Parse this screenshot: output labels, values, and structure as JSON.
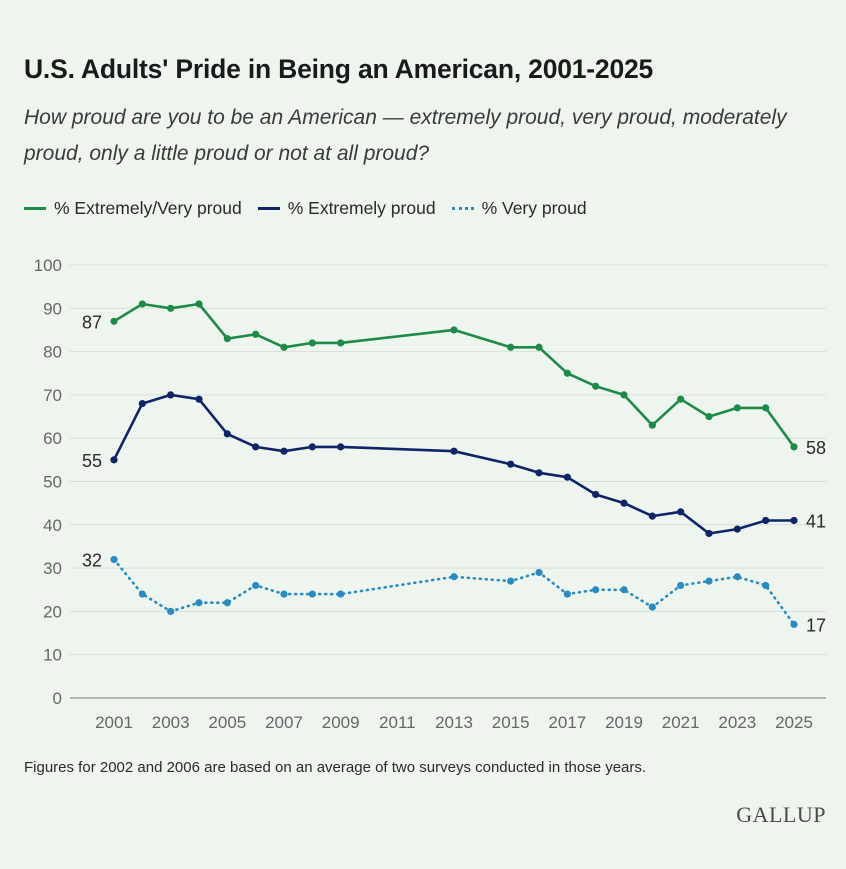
{
  "header": {
    "title": "U.S. Adults' Pride in Being an American, 2001-2025",
    "subtitle": "How proud are you to be an American — extremely proud, very proud, moderately proud, only a little proud or not at all proud?"
  },
  "footer": {
    "note": "Figures for 2002 and 2006 are based on an average of two surveys conducted in those years.",
    "brand": "GALLUP"
  },
  "colors": {
    "extremely_very": "#1e8a47",
    "extremely": "#0e2466",
    "very": "#2a8bc2",
    "grid": "#d5dfd7",
    "axis_text": "#666666",
    "label_text": "#2a2a2a"
  },
  "chart_data": {
    "type": "line",
    "title": "U.S. Adults' Pride in Being an American, 2001-2025",
    "subtitle": "How proud are you to be an American — extremely proud, very proud, moderately proud, only a little proud or not at all proud?",
    "xlabel": "",
    "ylabel": "",
    "ylim": [
      0,
      100
    ],
    "y_ticks": [
      0,
      10,
      20,
      30,
      40,
      50,
      60,
      70,
      80,
      90,
      100
    ],
    "x_ticks": [
      2001,
      2003,
      2005,
      2007,
      2009,
      2011,
      2013,
      2015,
      2017,
      2019,
      2021,
      2023,
      2025
    ],
    "xlim": [
      2001,
      2025
    ],
    "grid": true,
    "legend": "top-left",
    "series": [
      {
        "name": "% Extremely/Very proud",
        "key": "extremely_very",
        "line_style": "solid",
        "x": [
          2001,
          2002,
          2003,
          2004,
          2005,
          2006,
          2007,
          2008,
          2009,
          2013,
          2015,
          2016,
          2017,
          2018,
          2019,
          2020,
          2021,
          2022,
          2023,
          2024,
          2025
        ],
        "values": [
          87,
          91,
          90,
          91,
          83,
          84,
          81,
          82,
          82,
          85,
          81,
          81,
          75,
          72,
          70,
          63,
          69,
          65,
          67,
          67,
          58
        ],
        "labels": [
          {
            "x": 2001,
            "text": "87",
            "side": "left"
          },
          {
            "x": 2025,
            "text": "58",
            "side": "right"
          }
        ]
      },
      {
        "name": "% Extremely proud",
        "key": "extremely",
        "line_style": "solid",
        "x": [
          2001,
          2002,
          2003,
          2004,
          2005,
          2006,
          2007,
          2008,
          2009,
          2013,
          2015,
          2016,
          2017,
          2018,
          2019,
          2020,
          2021,
          2022,
          2023,
          2024,
          2025
        ],
        "values": [
          55,
          68,
          70,
          69,
          61,
          58,
          57,
          58,
          58,
          57,
          54,
          52,
          51,
          47,
          45,
          42,
          43,
          38,
          39,
          41,
          41
        ],
        "labels": [
          {
            "x": 2001,
            "text": "55",
            "side": "left"
          },
          {
            "x": 2025,
            "text": "41",
            "side": "right"
          }
        ]
      },
      {
        "name": "% Very proud",
        "key": "very",
        "line_style": "dotted",
        "x": [
          2001,
          2002,
          2003,
          2004,
          2005,
          2006,
          2007,
          2008,
          2009,
          2013,
          2015,
          2016,
          2017,
          2018,
          2019,
          2020,
          2021,
          2022,
          2023,
          2024,
          2025
        ],
        "values": [
          32,
          24,
          20,
          22,
          22,
          26,
          24,
          24,
          24,
          28,
          27,
          29,
          24,
          25,
          25,
          21,
          26,
          27,
          28,
          26,
          17
        ],
        "labels": [
          {
            "x": 2001,
            "text": "32",
            "side": "left"
          },
          {
            "x": 2025,
            "text": "17",
            "side": "right"
          }
        ]
      }
    ]
  }
}
